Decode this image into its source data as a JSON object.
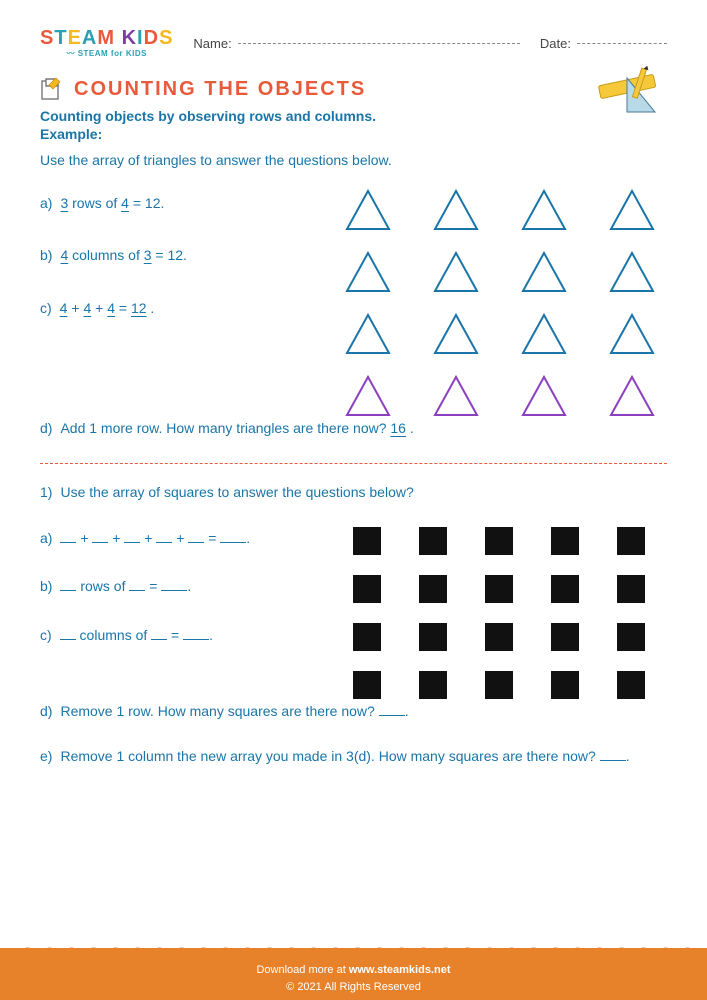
{
  "colors": {
    "title": "#e85a3a",
    "blue": "#1a75a8",
    "purple": "#8a3fbf",
    "black": "#111111",
    "footer_bg": "#e8822a",
    "dashed": "#e85a3a",
    "text_body": "#1a75a8"
  },
  "header": {
    "logo": {
      "text": "STEAM KIDS",
      "colors": [
        "#e85a3a",
        "#2aa0b5",
        "#f5b81f",
        "#2aa0b5",
        "#e85a3a",
        "#7a3fa0",
        "#2aa0b5",
        "#e85a3a",
        "#f5b81f",
        "#7a3fa0"
      ],
      "subtitle": "STEAM for KIDS"
    },
    "name_label": "Name:",
    "date_label": "Date:"
  },
  "title": "COUNTING THE OBJECTS",
  "subtitle": "Counting objects by observing rows and columns.",
  "example_label": "Example:",
  "instruction_1": "Use the array of triangles to answer the questions below.",
  "example": {
    "triangles": {
      "rows": 4,
      "cols": 4,
      "stroke_width": 2,
      "row_colors": [
        "#1a75a8",
        "#1a75a8",
        "#1a75a8",
        "#8a3fbf"
      ]
    },
    "items": [
      {
        "label": "a)",
        "parts": [
          {
            "t": "ans",
            "v": "3"
          },
          {
            "t": "txt",
            "v": " rows of "
          },
          {
            "t": "ans",
            "v": "4"
          },
          {
            "t": "txt",
            "v": " = 12."
          }
        ]
      },
      {
        "label": "b)",
        "parts": [
          {
            "t": "ans",
            "v": "4"
          },
          {
            "t": "txt",
            "v": " columns of "
          },
          {
            "t": "ans",
            "v": "3"
          },
          {
            "t": "txt",
            "v": " = 12."
          }
        ]
      },
      {
        "label": "c)",
        "parts": [
          {
            "t": "ans",
            "v": "4"
          },
          {
            "t": "txt",
            "v": " + "
          },
          {
            "t": "ans",
            "v": "4"
          },
          {
            "t": "txt",
            "v": " + "
          },
          {
            "t": "ans",
            "v": "4"
          },
          {
            "t": "txt",
            "v": " = "
          },
          {
            "t": "ans",
            "v": "12"
          },
          {
            "t": "txt",
            "v": " ."
          }
        ]
      }
    ],
    "item_d": {
      "label": "d)",
      "text": "Add 1 more row. How many triangles are there now?  ",
      "answer": "16",
      "tail": " ."
    }
  },
  "problem1": {
    "prompt_label": "1)",
    "prompt": "Use the array of squares to answer the questions below?",
    "squares": {
      "rows": 4,
      "cols": 5,
      "fill": "#111111"
    },
    "items": [
      {
        "label": "a)",
        "parts": [
          {
            "t": "blk"
          },
          {
            "t": "txt",
            "v": " + "
          },
          {
            "t": "blk"
          },
          {
            "t": "txt",
            "v": " + "
          },
          {
            "t": "blk"
          },
          {
            "t": "txt",
            "v": " + "
          },
          {
            "t": "blk"
          },
          {
            "t": "txt",
            "v": " + "
          },
          {
            "t": "blk"
          },
          {
            "t": "txt",
            "v": " = "
          },
          {
            "t": "blk",
            "w": "lg"
          },
          {
            "t": "txt",
            "v": "."
          }
        ]
      },
      {
        "label": "b)",
        "parts": [
          {
            "t": "blk"
          },
          {
            "t": "txt",
            "v": " rows of "
          },
          {
            "t": "blk"
          },
          {
            "t": "txt",
            "v": " = "
          },
          {
            "t": "blk",
            "w": "lg"
          },
          {
            "t": "txt",
            "v": "."
          }
        ]
      },
      {
        "label": "c)",
        "parts": [
          {
            "t": "blk"
          },
          {
            "t": "txt",
            "v": " columns of "
          },
          {
            "t": "blk"
          },
          {
            "t": "txt",
            "v": " = "
          },
          {
            "t": "blk",
            "w": "lg"
          },
          {
            "t": "txt",
            "v": "."
          }
        ]
      }
    ],
    "item_d": {
      "label": "d)",
      "text": "Remove 1 row. How many squares are there now?  "
    },
    "item_e": {
      "label": "e)",
      "text": "Remove 1 column the new array you made in 3(d). How many squares are there now?   "
    }
  },
  "footer": {
    "line1_a": "Download more at ",
    "line1_b": "www.steamkids.net",
    "line2": "© 2021 All Rights Reserved"
  }
}
